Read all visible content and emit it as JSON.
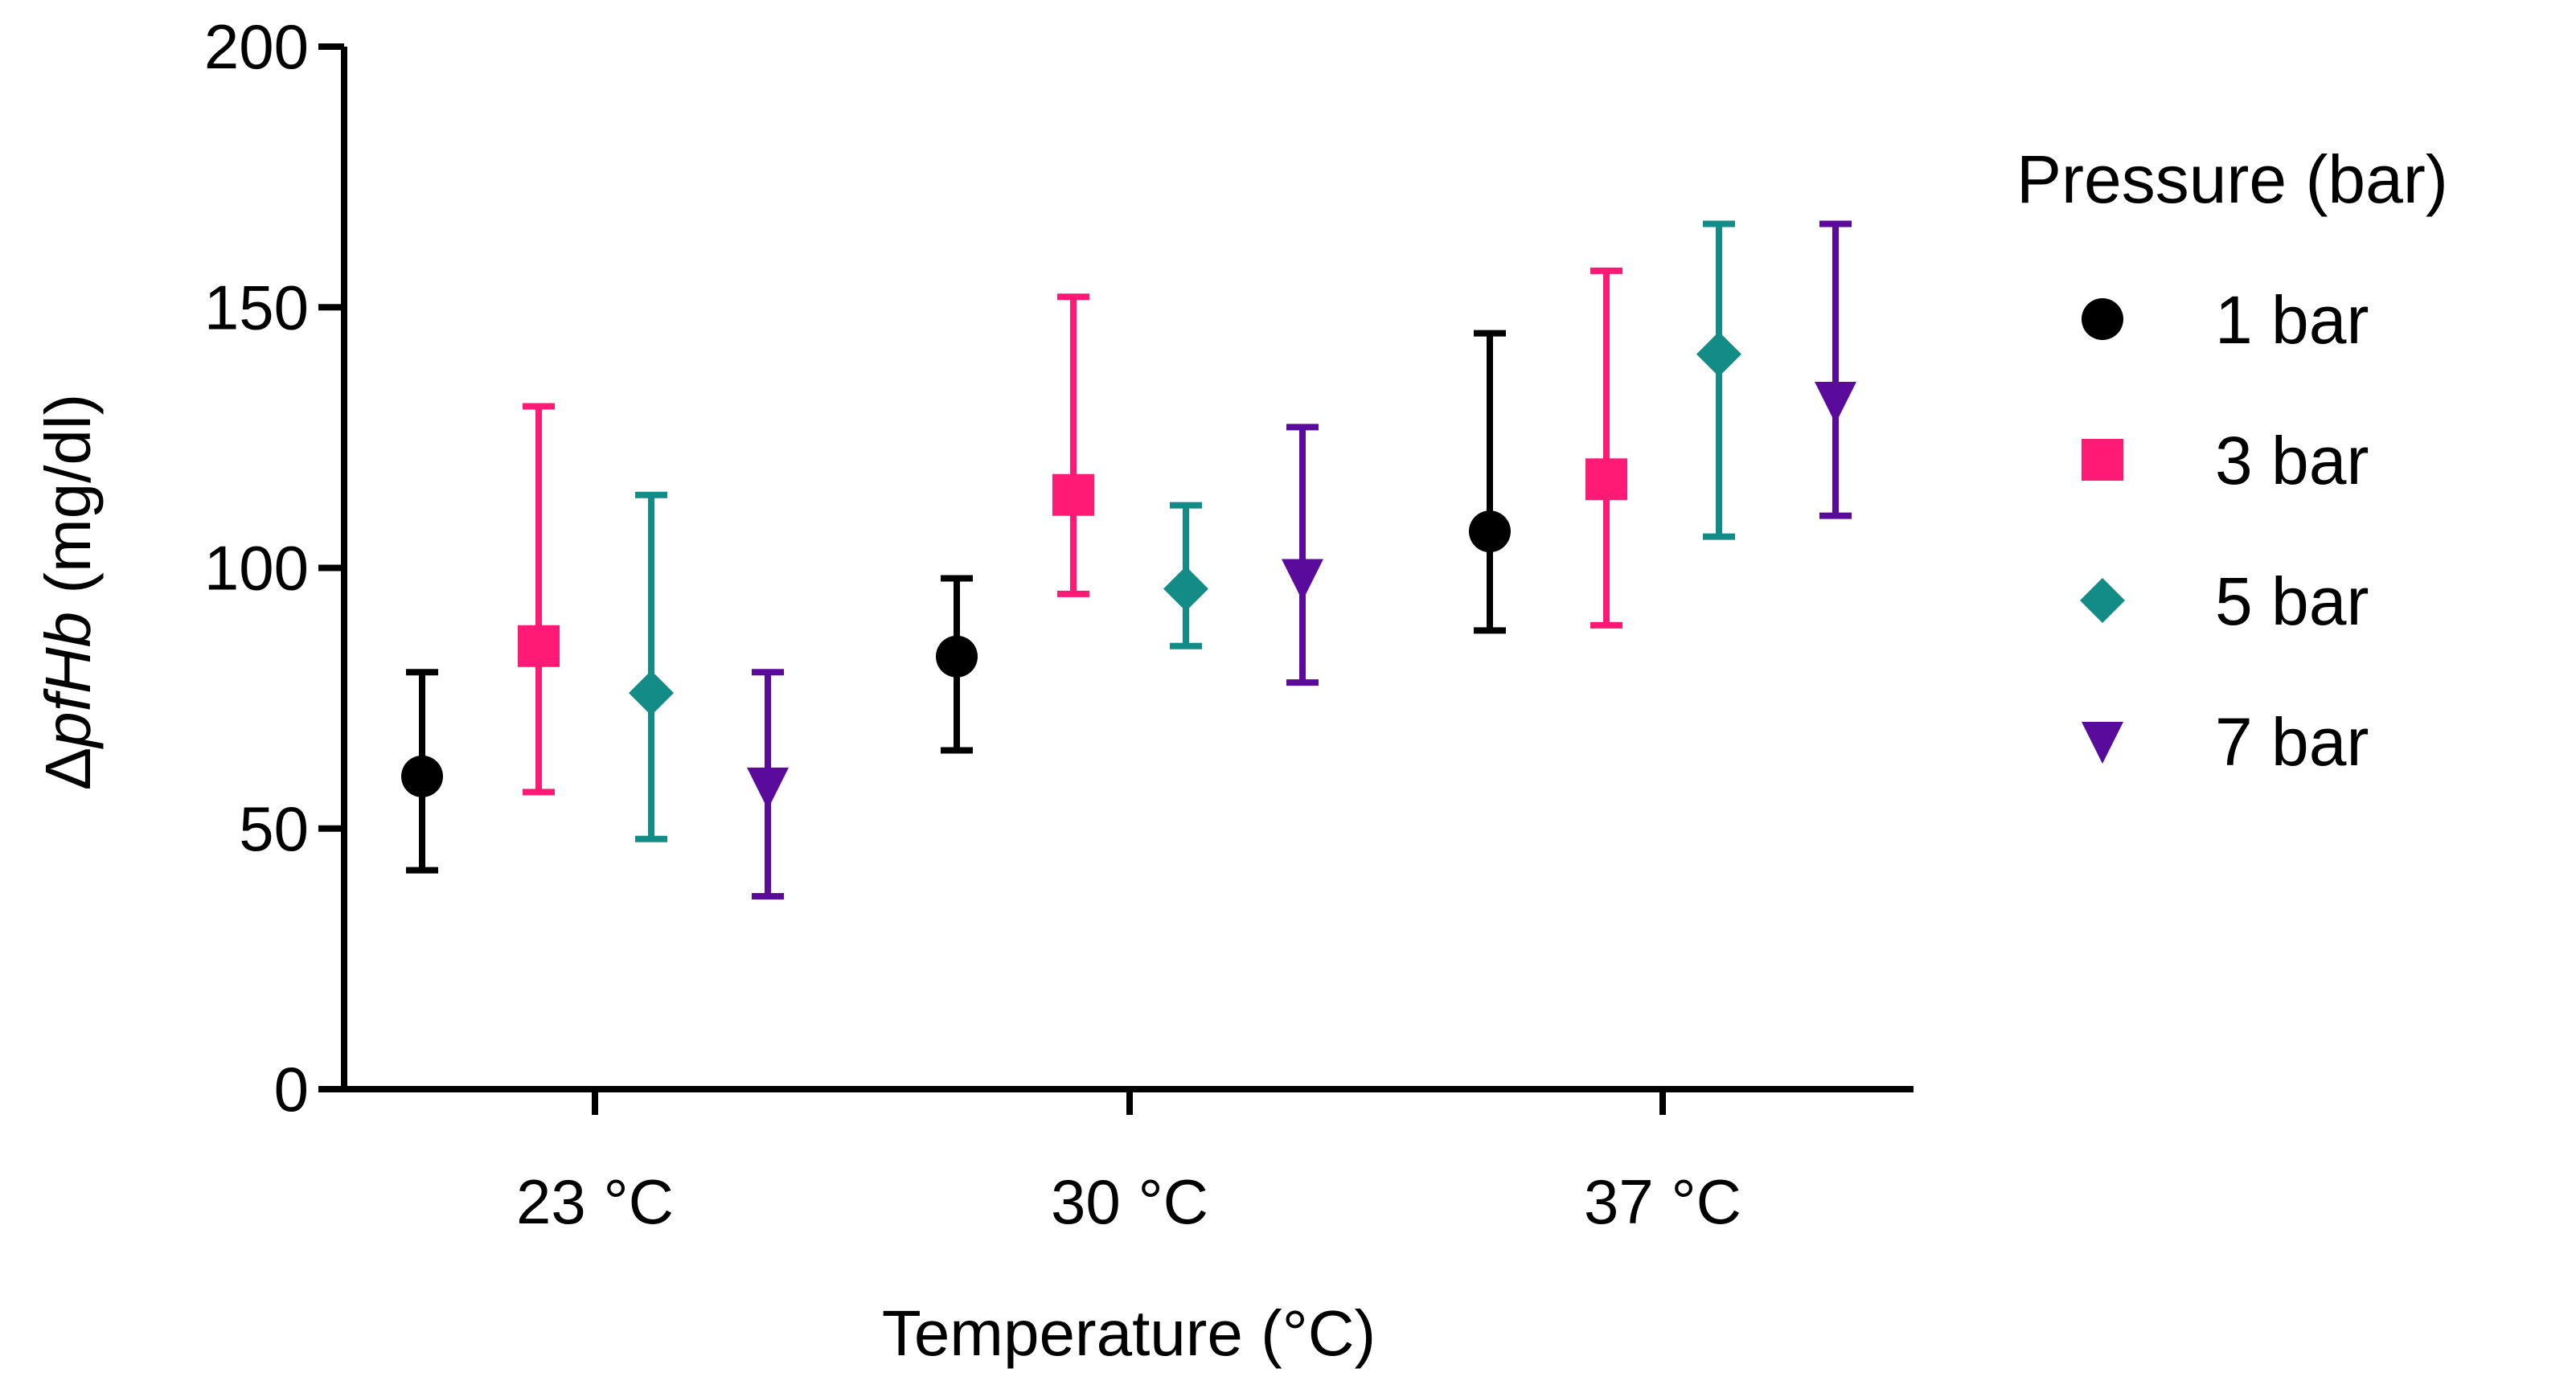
{
  "chart_data": {
    "type": "scatter",
    "subtype": "grouped dot plot with error bars",
    "title": "",
    "xlabel": "Temperature (°C)",
    "ylabel_prefix": "Δ",
    "ylabel_italic": "pfHb",
    "ylabel_suffix": " (mg/dl)",
    "categories": [
      "23 °C",
      "30 °C",
      "37 °C"
    ],
    "ylim": [
      0,
      200
    ],
    "yticks": [
      "0",
      "50",
      "100",
      "150",
      "200"
    ],
    "grid": false,
    "legend": {
      "title": "Pressure (bar)",
      "position": "right"
    },
    "series": [
      {
        "name": "1 bar",
        "marker": "circle",
        "color": "#000000",
        "values": [
          60,
          83,
          107
        ],
        "err_low": [
          42,
          65,
          88
        ],
        "err_high": [
          80,
          98,
          145
        ]
      },
      {
        "name": "3 bar",
        "marker": "square",
        "color": "#ff1a75",
        "values": [
          85,
          114,
          117
        ],
        "err_low": [
          57,
          95,
          89
        ],
        "err_high": [
          131,
          152,
          157
        ]
      },
      {
        "name": "5 bar",
        "marker": "diamond",
        "color": "#138b87",
        "values": [
          76,
          96,
          141
        ],
        "err_low": [
          48,
          85,
          106
        ],
        "err_high": [
          114,
          112,
          166
        ]
      },
      {
        "name": "7 bar",
        "marker": "triangle-down",
        "color": "#5a0b9b",
        "values": [
          58,
          98,
          132
        ],
        "err_low": [
          37,
          78,
          110
        ],
        "err_high": [
          80,
          127,
          166
        ]
      }
    ]
  }
}
